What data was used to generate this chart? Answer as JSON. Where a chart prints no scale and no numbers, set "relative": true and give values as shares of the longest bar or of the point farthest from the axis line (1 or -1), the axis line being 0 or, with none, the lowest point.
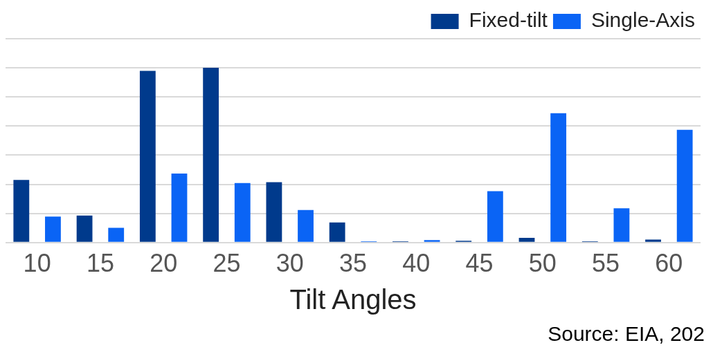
{
  "chart_data": {
    "type": "bar",
    "relative": true,
    "xlabel": "Tilt Angles",
    "categories": [
      "10",
      "15",
      "20",
      "25",
      "30",
      "35",
      "40",
      "45",
      "50",
      "55",
      "60"
    ],
    "series": [
      {
        "name": "Fixed-tilt",
        "color": "#003a8c",
        "values": [
          0.358,
          0.155,
          0.983,
          1,
          0.345,
          0.115,
          0.007,
          0.01,
          0.027,
          0.007,
          0.017
        ]
      },
      {
        "name": "Single-Axis",
        "color": "#0a64f5",
        "values": [
          0.149,
          0.084,
          0.395,
          0.341,
          0.186,
          0.007,
          0.014,
          0.294,
          0.74,
          0.196,
          0.645
        ]
      }
    ],
    "grid": "y",
    "legend": "top right",
    "annotations": [
      "Source: EIA, 202"
    ]
  }
}
